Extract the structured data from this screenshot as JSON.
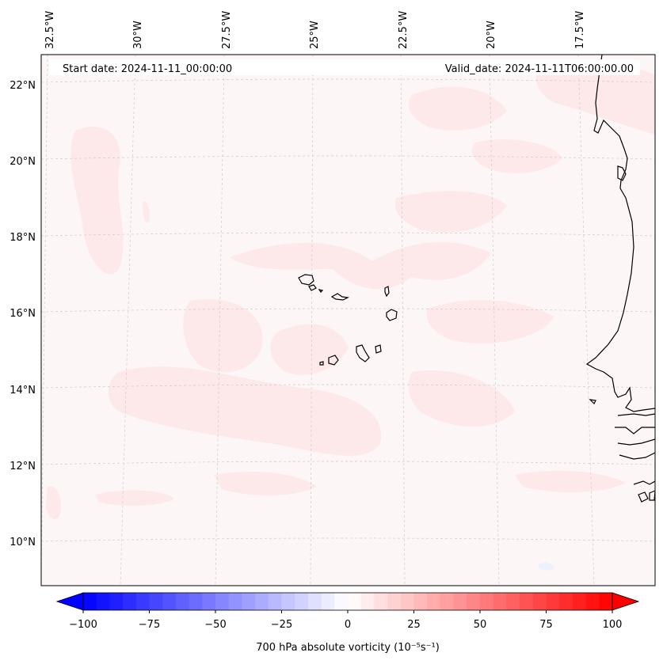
{
  "map": {
    "header_left": "Start date: 2024-11-11_00:00:00",
    "header_right": "Valid_date: 2024-11-11T06:00:00.00",
    "longitude_labels": [
      "32.5°W",
      "30°W",
      "27.5°W",
      "25°W",
      "22.5°W",
      "20°W",
      "17.5°W"
    ],
    "latitude_labels": [
      "22°N",
      "20°N",
      "18°N",
      "16°N",
      "14°N",
      "12°N",
      "10°N"
    ],
    "colors": {
      "background_field": "#fdf6f6",
      "vorticity_patch": "#fde9e9",
      "coastline": "#000000",
      "gridline": "#cccccc"
    }
  },
  "colorbar": {
    "label": "700 hPa absolute vorticity (10⁻⁵s⁻¹)",
    "ticks": [
      "−100",
      "−75",
      "−50",
      "−25",
      "0",
      "25",
      "50",
      "75",
      "100"
    ],
    "min": -100,
    "max": 100,
    "colors": {
      "low": "#0000ff",
      "mid": "#ffffff",
      "high": "#ff0000"
    }
  }
}
